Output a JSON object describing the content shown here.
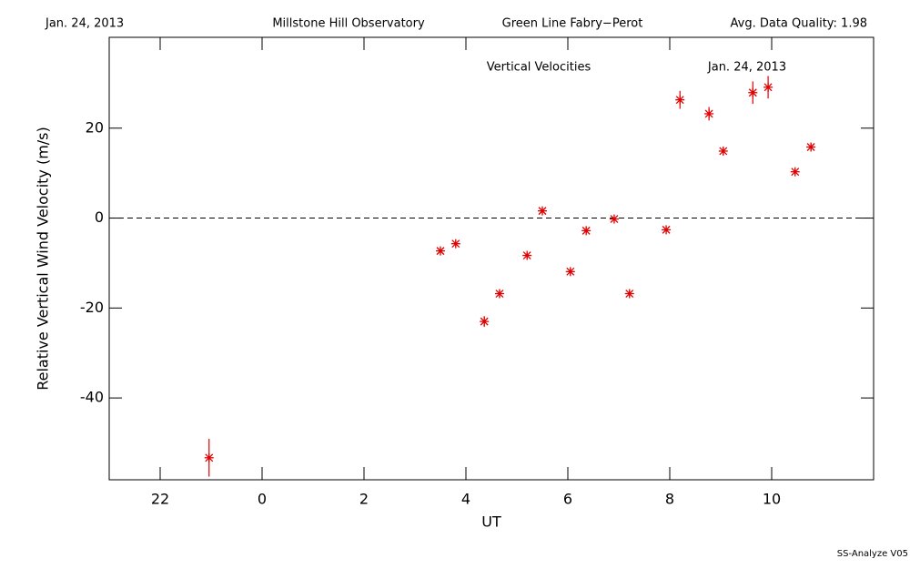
{
  "header": {
    "date": "Jan. 24, 2013",
    "observatory": "Millstone Hill Observatory",
    "instrument": "Green Line Fabry−Perot",
    "quality": "Avg. Data Quality: 1.98"
  },
  "footer": "SS-Analyze V05",
  "chart_data": {
    "type": "scatter",
    "title": "Vertical Velocities",
    "annotation": "Jan. 24, 2013",
    "xlabel": "UT",
    "ylabel": "Relative Vertical Wind Velocity (m/s)",
    "color": "#e00000",
    "x": [
      -1.04,
      3.5,
      3.8,
      4.36,
      4.66,
      5.2,
      5.5,
      6.05,
      6.36,
      6.91,
      7.21,
      7.93,
      8.2,
      8.77,
      9.05,
      9.63,
      9.93,
      10.46,
      10.77
    ],
    "y": [
      -53.3,
      -7.3,
      -5.7,
      -23.0,
      -16.8,
      -8.3,
      1.6,
      -11.9,
      -2.8,
      -0.2,
      -16.8,
      -2.6,
      26.3,
      23.2,
      14.9,
      27.9,
      29.1,
      10.3,
      15.8
    ],
    "errors": [
      4.2,
      0.5,
      0.5,
      1.2,
      0.8,
      0.6,
      0.6,
      0.7,
      0.6,
      0.5,
      0.6,
      0.5,
      2.0,
      1.5,
      0.8,
      2.5,
      2.5,
      0.6,
      0.8
    ],
    "xlim": [
      -3,
      12
    ],
    "ylim": [
      -58.2,
      40.2
    ],
    "xticks": [
      {
        "value": -2,
        "label": "22"
      },
      0,
      2,
      4,
      6,
      8,
      10
    ],
    "yticks": [
      -40,
      -20,
      0,
      20
    ],
    "reference_line": 0
  }
}
